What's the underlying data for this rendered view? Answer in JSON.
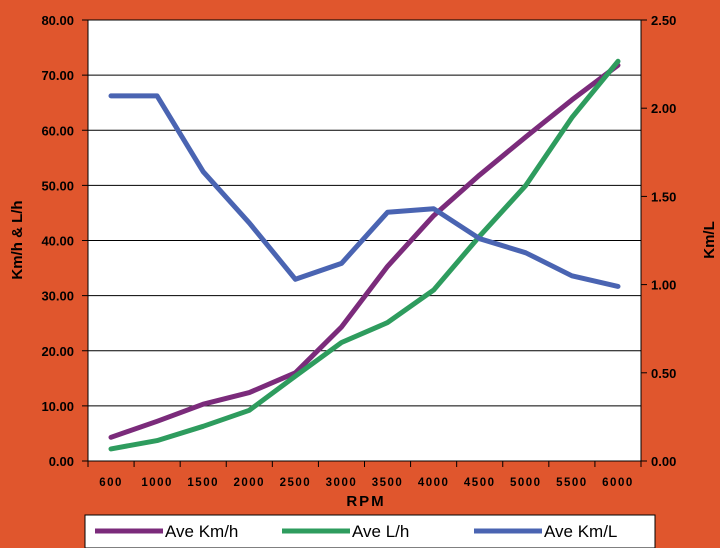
{
  "chart_data": {
    "type": "line",
    "title": "",
    "categories": [
      "600",
      "1000",
      "1500",
      "2000",
      "2500",
      "3000",
      "3500",
      "4000",
      "4500",
      "5000",
      "5500",
      "6000"
    ],
    "xlabel": "RPM",
    "ylabel": "Km/h & L/h",
    "y2label": "Km/L",
    "ylim": [
      0,
      80
    ],
    "y2lim": [
      0,
      2.5
    ],
    "yticks": [
      "0.00",
      "10.00",
      "20.00",
      "30.00",
      "40.00",
      "50.00",
      "60.00",
      "70.00",
      "80.00"
    ],
    "y2ticks": [
      "0.00",
      "0.50",
      "1.00",
      "1.50",
      "2.00",
      "2.50"
    ],
    "grid": true,
    "legend_position": "bottom",
    "background_color": "#e0562d",
    "plot_background": "#ffffff",
    "series": [
      {
        "name": "Ave Km/h",
        "axis": "left",
        "color": "#7b2b7b",
        "values": [
          4.3,
          7.2,
          10.3,
          12.4,
          16.0,
          24.3,
          35.3,
          44.5,
          51.9,
          58.8,
          65.5,
          71.8
        ]
      },
      {
        "name": "Ave L/h",
        "axis": "left",
        "color": "#2e9c5e",
        "values": [
          2.2,
          3.7,
          6.3,
          9.2,
          15.4,
          21.5,
          25.1,
          31.0,
          40.8,
          50.0,
          62.3,
          72.5
        ]
      },
      {
        "name": "Ave Km/L",
        "axis": "right",
        "color": "#4a64b2",
        "values": [
          2.07,
          2.07,
          1.64,
          1.35,
          1.03,
          1.12,
          1.41,
          1.43,
          1.26,
          1.18,
          1.05,
          0.99
        ]
      }
    ]
  }
}
